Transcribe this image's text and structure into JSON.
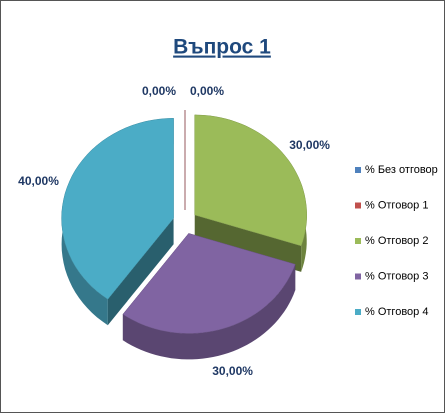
{
  "chart_data": {
    "type": "pie",
    "title": "Въпрос 1",
    "categories": [
      "% Без отговор",
      "% Отговор 1",
      "% Отговор 2",
      "% Отговор 3",
      "% Отговор 4"
    ],
    "values": [
      0,
      0,
      30,
      30,
      40
    ],
    "value_labels": [
      "0,00%",
      "0,00%",
      "30,00%",
      "30,00%",
      "40,00%"
    ],
    "colors": [
      "#4f81bd",
      "#c0504d",
      "#9bbb59",
      "#8064a2",
      "#4bacc6"
    ],
    "legend": "right"
  }
}
